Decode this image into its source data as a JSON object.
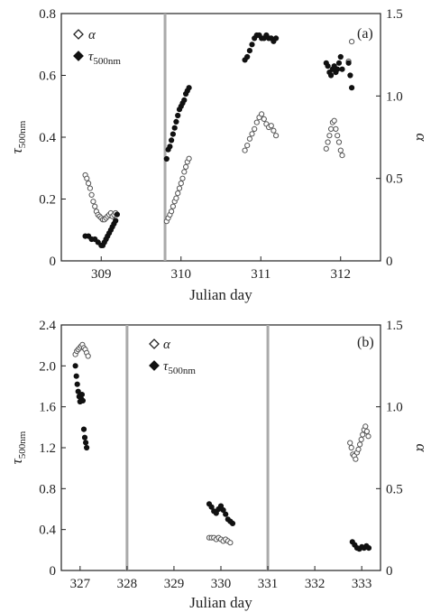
{
  "chart_data": [
    {
      "type": "scatter",
      "panel_label": "(a)",
      "xlabel": "Julian day",
      "ylabel_main": "τ",
      "ylabel_sub": "500nm",
      "y2label": "α",
      "xlim": [
        308.5,
        312.5
      ],
      "ylim": [
        0,
        0.8
      ],
      "y2lim": [
        0,
        1.5
      ],
      "xticks": [
        "309",
        "310",
        "311",
        "312"
      ],
      "yticks": [
        "0",
        "0.2",
        "0.4",
        "0.6",
        "0.8"
      ],
      "y2ticks": [
        "0",
        "0.5",
        "1.0",
        "1.5"
      ],
      "vlines": [
        309.8
      ],
      "legend": {
        "position": "top-left",
        "entries": [
          {
            "symbol": "α",
            "sub": ""
          },
          {
            "symbol": "τ",
            "sub": "500nm"
          }
        ]
      },
      "series": [
        {
          "marker": "open-circle",
          "axis": "right",
          "x": [
            308.8,
            308.82,
            308.84,
            308.86,
            308.88,
            308.9,
            308.92,
            308.94,
            308.96,
            308.98,
            309.0,
            309.02,
            309.04,
            309.06,
            309.08,
            309.1,
            309.12,
            309.14,
            309.16,
            309.18,
            309.82,
            309.84,
            309.86,
            309.88,
            309.9,
            309.92,
            309.94,
            309.96,
            309.98,
            310.0,
            310.02,
            310.04,
            310.06,
            310.08,
            310.1,
            310.8,
            310.83,
            310.86,
            310.89,
            310.92,
            310.95,
            310.98,
            311.01,
            311.04,
            311.07,
            311.1,
            311.13,
            311.16,
            311.19,
            311.82,
            311.84,
            311.86,
            311.88,
            311.9,
            311.92,
            311.94,
            311.96,
            311.98,
            312.0,
            312.02,
            312.1,
            312.14
          ],
          "y": [
            0.52,
            0.5,
            0.47,
            0.44,
            0.4,
            0.36,
            0.33,
            0.3,
            0.28,
            0.27,
            0.26,
            0.25,
            0.25,
            0.26,
            0.27,
            0.28,
            0.29,
            0.27,
            0.28,
            0.29,
            0.24,
            0.26,
            0.28,
            0.3,
            0.33,
            0.36,
            0.38,
            0.41,
            0.44,
            0.47,
            0.5,
            0.54,
            0.57,
            0.6,
            0.62,
            0.67,
            0.7,
            0.74,
            0.77,
            0.8,
            0.84,
            0.87,
            0.89,
            0.86,
            0.83,
            0.81,
            0.82,
            0.79,
            0.76,
            0.68,
            0.72,
            0.76,
            0.8,
            0.84,
            0.85,
            0.8,
            0.76,
            0.72,
            0.67,
            0.64,
            1.21,
            1.33
          ]
        },
        {
          "marker": "filled-circle",
          "axis": "left",
          "x": [
            308.8,
            308.84,
            308.88,
            308.92,
            308.96,
            309.0,
            309.02,
            309.04,
            309.06,
            309.08,
            309.1,
            309.12,
            309.14,
            309.16,
            309.18,
            309.2,
            309.82,
            309.84,
            309.86,
            309.88,
            309.9,
            309.92,
            309.94,
            309.96,
            309.98,
            310.0,
            310.02,
            310.04,
            310.06,
            310.08,
            310.1,
            310.8,
            310.83,
            310.86,
            310.89,
            310.92,
            310.95,
            310.98,
            311.01,
            311.04,
            311.07,
            311.1,
            311.13,
            311.16,
            311.19,
            311.82,
            311.84,
            311.86,
            311.88,
            311.9,
            311.92,
            311.94,
            311.96,
            311.98,
            312.0,
            312.02,
            312.1,
            312.12,
            312.14
          ],
          "y": [
            0.08,
            0.08,
            0.07,
            0.07,
            0.06,
            0.05,
            0.05,
            0.06,
            0.07,
            0.08,
            0.09,
            0.1,
            0.11,
            0.12,
            0.13,
            0.15,
            0.33,
            0.36,
            0.37,
            0.39,
            0.41,
            0.43,
            0.45,
            0.47,
            0.49,
            0.5,
            0.51,
            0.52,
            0.54,
            0.55,
            0.56,
            0.65,
            0.66,
            0.68,
            0.7,
            0.72,
            0.73,
            0.73,
            0.72,
            0.72,
            0.73,
            0.72,
            0.72,
            0.71,
            0.72,
            0.64,
            0.63,
            0.61,
            0.6,
            0.62,
            0.63,
            0.61,
            0.62,
            0.64,
            0.66,
            0.62,
            0.64,
            0.6,
            0.56
          ]
        }
      ]
    },
    {
      "type": "scatter",
      "panel_label": "(b)",
      "xlabel": "Julian day",
      "ylabel_main": "τ",
      "ylabel_sub": "500nm",
      "y2label": "α",
      "xlim": [
        326.6,
        333.4
      ],
      "ylim": [
        0,
        2.4
      ],
      "y2lim": [
        0,
        1.5
      ],
      "xticks": [
        "327",
        "328",
        "329",
        "330",
        "331",
        "332",
        "333"
      ],
      "yticks": [
        "0",
        "0.4",
        "0.8",
        "1.2",
        "1.6",
        "2.0",
        "2.4"
      ],
      "y2ticks": [
        "0",
        "0.5",
        "1.0",
        "1.5"
      ],
      "vlines": [
        328.0,
        331.0
      ],
      "legend": {
        "position": "top-center",
        "entries": [
          {
            "symbol": "α",
            "sub": ""
          },
          {
            "symbol": "τ",
            "sub": "500nm"
          }
        ]
      },
      "series": [
        {
          "marker": "open-circle",
          "axis": "right",
          "x": [
            326.9,
            326.93,
            326.96,
            326.99,
            327.02,
            327.05,
            327.08,
            327.11,
            327.14,
            327.17,
            329.75,
            329.8,
            329.85,
            329.9,
            329.95,
            330.0,
            330.05,
            330.1,
            330.15,
            330.2,
            332.75,
            332.78,
            332.81,
            332.84,
            332.87,
            332.9,
            332.93,
            332.96,
            332.99,
            333.02,
            333.05,
            333.08,
            333.11,
            333.14
          ],
          "y": [
            1.32,
            1.34,
            1.35,
            1.36,
            1.37,
            1.38,
            1.36,
            1.35,
            1.33,
            1.31,
            0.2,
            0.2,
            0.2,
            0.19,
            0.2,
            0.19,
            0.18,
            0.19,
            0.18,
            0.17,
            0.78,
            0.75,
            0.71,
            0.7,
            0.68,
            0.72,
            0.74,
            0.77,
            0.8,
            0.83,
            0.86,
            0.88,
            0.85,
            0.82
          ]
        },
        {
          "marker": "filled-circle",
          "axis": "left",
          "x": [
            326.9,
            326.92,
            326.94,
            326.96,
            326.98,
            327.0,
            327.02,
            327.04,
            327.06,
            327.08,
            327.1,
            327.12,
            327.14,
            329.75,
            329.8,
            329.85,
            329.9,
            329.95,
            330.0,
            330.05,
            330.1,
            330.15,
            330.2,
            330.25,
            332.8,
            332.85,
            332.9,
            332.95,
            333.0,
            333.05,
            333.1,
            333.15
          ],
          "y": [
            2.0,
            1.9,
            1.82,
            1.75,
            1.7,
            1.65,
            1.68,
            1.72,
            1.66,
            1.38,
            1.3,
            1.25,
            1.2,
            0.65,
            0.62,
            0.58,
            0.56,
            0.6,
            0.63,
            0.59,
            0.55,
            0.5,
            0.48,
            0.46,
            0.28,
            0.25,
            0.22,
            0.21,
            0.23,
            0.22,
            0.24,
            0.22
          ]
        }
      ]
    }
  ]
}
